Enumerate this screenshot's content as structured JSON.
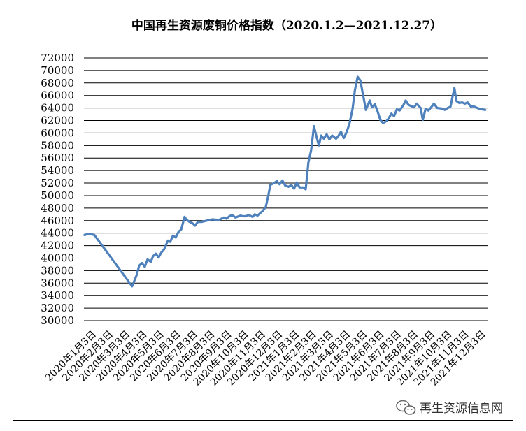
{
  "chart_data": {
    "type": "line",
    "title": "中国再生资源废铜价格指数（2020.1.2—2021.12.27）",
    "ylim": [
      30000,
      72000
    ],
    "yticks": [
      30000,
      32000,
      34000,
      36000,
      38000,
      40000,
      42000,
      44000,
      46000,
      48000,
      50000,
      52000,
      54000,
      56000,
      58000,
      60000,
      62000,
      64000,
      66000,
      68000,
      70000,
      72000
    ],
    "grid": true,
    "line_color": "#4F81BD",
    "xticks": [
      "2020年1月3日",
      "2020年2月3日",
      "2020年3月3日",
      "2020年4月3日",
      "2020年5月3日",
      "2020年6月3日",
      "2020年7月3日",
      "2020年8月3日",
      "2020年9月3日",
      "2020年10月3日",
      "2020年11月3日",
      "2020年12月3日",
      "2021年1月3日",
      "2021年2月3日",
      "2021年3月3日",
      "2021年4月3日",
      "2021年5月3日",
      "2021年6月3日",
      "2021年7月3日",
      "2021年8月3日",
      "2021年9月3日",
      "2021年10月3日",
      "2021年11月3日",
      "2021年12月3日"
    ],
    "series": [
      {
        "x": [
          "2020-01-02",
          "2020-01-10",
          "2020-01-20",
          "2020-03-28",
          "2020-04-05",
          "2020-04-10",
          "2020-04-15",
          "2020-04-20",
          "2020-04-25",
          "2020-05-01",
          "2020-05-05",
          "2020-05-10",
          "2020-05-15",
          "2020-05-20",
          "2020-05-25",
          "2020-06-01",
          "2020-06-05",
          "2020-06-10",
          "2020-06-15",
          "2020-06-20",
          "2020-06-25",
          "2020-07-01",
          "2020-07-05",
          "2020-07-10",
          "2020-07-15",
          "2020-07-20",
          "2020-07-25",
          "2020-08-01",
          "2020-08-10",
          "2020-08-20",
          "2020-09-01",
          "2020-09-10",
          "2020-09-15",
          "2020-09-20",
          "2020-09-25",
          "2020-10-01",
          "2020-10-10",
          "2020-10-15",
          "2020-10-20",
          "2020-10-25",
          "2020-11-01",
          "2020-11-05",
          "2020-11-10",
          "2020-11-15",
          "2020-11-20",
          "2020-11-25",
          "2020-11-30",
          "2020-12-03",
          "2020-12-10",
          "2020-12-15",
          "2020-12-20",
          "2020-12-25",
          "2020-12-30",
          "2021-01-05",
          "2021-01-10",
          "2021-01-15",
          "2021-01-20",
          "2021-01-25",
          "2021-02-01",
          "2021-02-05",
          "2021-02-10",
          "2021-02-15",
          "2021-02-20",
          "2021-02-25",
          "2021-03-01",
          "2021-03-05",
          "2021-03-10",
          "2021-03-15",
          "2021-03-20",
          "2021-03-25",
          "2021-04-01",
          "2021-04-05",
          "2021-04-10",
          "2021-04-15",
          "2021-04-20",
          "2021-04-25",
          "2021-05-01",
          "2021-05-05",
          "2021-05-10",
          "2021-05-15",
          "2021-05-20",
          "2021-05-25",
          "2021-06-01",
          "2021-06-05",
          "2021-06-10",
          "2021-06-15",
          "2021-06-20",
          "2021-06-25",
          "2021-07-01",
          "2021-07-05",
          "2021-07-10",
          "2021-07-15",
          "2021-07-20",
          "2021-07-25",
          "2021-08-01",
          "2021-08-05",
          "2021-08-10",
          "2021-08-15",
          "2021-08-20",
          "2021-08-25",
          "2021-09-01",
          "2021-09-05",
          "2021-09-10",
          "2021-09-15",
          "2021-09-20",
          "2021-09-25",
          "2021-10-01",
          "2021-10-10",
          "2021-10-15",
          "2021-10-20",
          "2021-10-25",
          "2021-11-01",
          "2021-11-05",
          "2021-11-10",
          "2021-11-15",
          "2021-11-20",
          "2021-11-25",
          "2021-12-01",
          "2021-12-05",
          "2021-12-10",
          "2021-12-15",
          "2021-12-20",
          "2021-12-27"
        ],
        "values": [
          43700,
          43900,
          43700,
          35500,
          37200,
          38800,
          39200,
          38600,
          39800,
          39400,
          40300,
          40700,
          40100,
          40900,
          41400,
          42800,
          42600,
          43600,
          43300,
          44200,
          44600,
          46600,
          46100,
          45800,
          45600,
          45200,
          45800,
          45800,
          46000,
          46200,
          46100,
          46500,
          46300,
          46700,
          46900,
          46500,
          46800,
          46700,
          46700,
          46900,
          46600,
          47000,
          46800,
          47200,
          47600,
          48200,
          50200,
          51700,
          52000,
          52300,
          51800,
          52400,
          51600,
          51400,
          51700,
          51100,
          52100,
          51300,
          51300,
          51000,
          55300,
          57300,
          61100,
          59300,
          58000,
          59600,
          59100,
          59800,
          59000,
          59600,
          59100,
          59500,
          60200,
          59200,
          60100,
          61400,
          63900,
          66800,
          69000,
          68400,
          66000,
          63700,
          65200,
          64100,
          64600,
          63500,
          62100,
          61600,
          61900,
          62300,
          63100,
          62700,
          63800,
          63600,
          64500,
          65200,
          64500,
          64300,
          64100,
          64700,
          64000,
          62100,
          63900,
          63600,
          64100,
          64700,
          64000,
          63900,
          63700,
          64000,
          64200,
          67200,
          65100,
          64800,
          64900,
          64700,
          64900,
          64200,
          64300,
          64100,
          63900,
          63800,
          63700
        ]
      }
    ]
  },
  "watermark": {
    "text": "再生资源信息网",
    "icon": "wechat-icon"
  }
}
